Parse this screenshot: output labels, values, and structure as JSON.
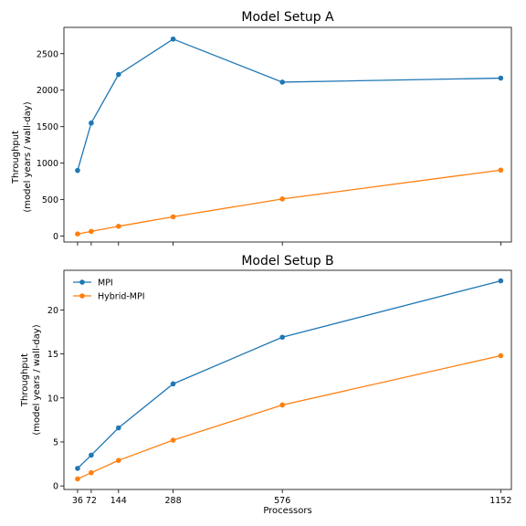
{
  "chart_data": [
    {
      "type": "line",
      "title": "Model Setup A",
      "xlabel": "",
      "ylabel": [
        "Throughput",
        "(model years / wall-day)"
      ],
      "x": [
        36,
        72,
        144,
        288,
        576,
        1152
      ],
      "xticks": [
        36,
        72,
        144,
        288,
        576,
        1152
      ],
      "x_tick_labels_visible": false,
      "xlim": [
        0,
        1180
      ],
      "ylim": [
        -80,
        2860
      ],
      "yticks": [
        0,
        500,
        1000,
        1500,
        2000,
        2500
      ],
      "ytick_labels": [
        "0",
        "500",
        "1000",
        "1500",
        "2000",
        "2500"
      ],
      "grid": false,
      "series": [
        {
          "key": "mpi",
          "color": "#1f77b4",
          "values": [
            900,
            1550,
            2215,
            2700,
            2110,
            2165
          ]
        },
        {
          "key": "hybrid",
          "color": "#ff7f0e",
          "values": [
            30,
            65,
            135,
            265,
            510,
            905
          ]
        }
      ]
    },
    {
      "type": "line",
      "title": "Model Setup B",
      "xlabel": "Processors",
      "ylabel": [
        "Throughput",
        "(model years / wall-day)"
      ],
      "x": [
        36,
        72,
        144,
        288,
        576,
        1152
      ],
      "xticks": [
        36,
        72,
        144,
        288,
        576,
        1152
      ],
      "xtick_labels": [
        "36",
        "72",
        "144",
        "288",
        "576",
        "1152"
      ],
      "x_tick_labels_visible": true,
      "xlim": [
        0,
        1180
      ],
      "ylim": [
        -0.4,
        24.5
      ],
      "yticks": [
        0,
        5,
        10,
        15,
        20
      ],
      "ytick_labels": [
        "0",
        "5",
        "10",
        "15",
        "20"
      ],
      "grid": false,
      "legend": {
        "placement": "upper-left",
        "entries": [
          "MPI",
          "Hybrid-MPI"
        ]
      },
      "series": [
        {
          "name": "MPI",
          "key": "mpi",
          "color": "#1f77b4",
          "values": [
            2.0,
            3.5,
            6.6,
            11.6,
            16.9,
            23.3
          ]
        },
        {
          "name": "Hybrid-MPI",
          "key": "hybrid",
          "color": "#ff7f0e",
          "values": [
            0.8,
            1.5,
            2.9,
            5.2,
            9.2,
            14.8
          ]
        }
      ]
    }
  ]
}
